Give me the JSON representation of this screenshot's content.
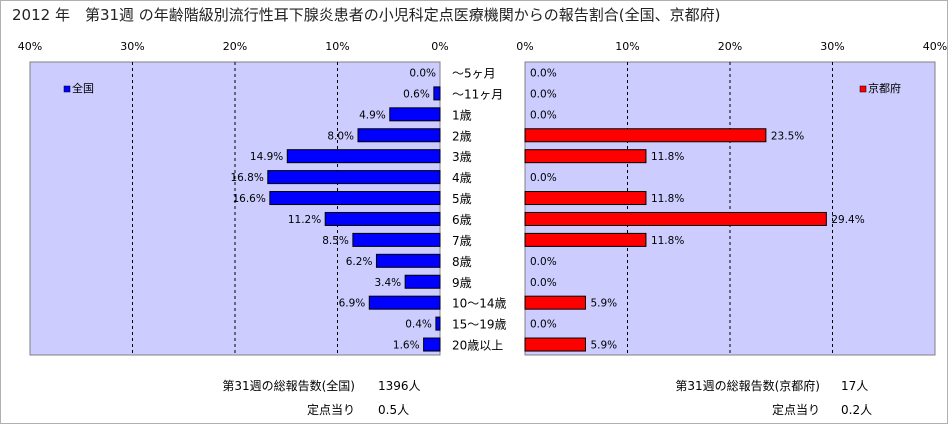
{
  "title": "2012 年　第31週 の年齢階級別流行性耳下腺炎患者の小児科定点医療機関からの報告割合(全国、京都府)",
  "chart_data": [
    {
      "type": "bar",
      "orientation": "horizontal",
      "direction": "right-to-left",
      "categories": [
        "～5ヶ月",
        "～11ヶ月",
        "1歳",
        "2歳",
        "3歳",
        "4歳",
        "5歳",
        "6歳",
        "7歳",
        "8歳",
        "9歳",
        "10～14歳",
        "15～19歳",
        "20歳以上"
      ],
      "series": [
        {
          "name": "全国",
          "color": "#0000ff",
          "values": [
            0.0,
            0.6,
            4.9,
            8.0,
            14.9,
            16.8,
            16.6,
            11.2,
            8.5,
            6.2,
            3.4,
            6.9,
            0.4,
            1.6
          ],
          "labels": [
            "0.0%",
            "0.6%",
            "4.9%",
            "8.0%",
            "14.9%",
            "16.8%",
            "16.6%",
            "11.2%",
            "8.5%",
            "6.2%",
            "3.4%",
            "6.9%",
            "0.4%",
            "1.6%"
          ]
        }
      ],
      "xlim": [
        0,
        40
      ],
      "ticks": [
        0,
        10,
        20,
        30,
        40
      ],
      "tick_labels": [
        "0%",
        "10%",
        "20%",
        "30%",
        "40%"
      ],
      "grid": true,
      "legend": "top-left",
      "plot_background": "#ccccff"
    },
    {
      "type": "bar",
      "orientation": "horizontal",
      "direction": "left-to-right",
      "categories": [
        "～5ヶ月",
        "～11ヶ月",
        "1歳",
        "2歳",
        "3歳",
        "4歳",
        "5歳",
        "6歳",
        "7歳",
        "8歳",
        "9歳",
        "10～14歳",
        "15～19歳",
        "20歳以上"
      ],
      "series": [
        {
          "name": "京都府",
          "color": "#ff0000",
          "values": [
            0.0,
            0.0,
            0.0,
            23.5,
            11.8,
            0.0,
            11.8,
            29.4,
            11.8,
            0.0,
            0.0,
            5.9,
            0.0,
            5.9
          ],
          "labels": [
            "0.0%",
            "0.0%",
            "0.0%",
            "23.5%",
            "11.8%",
            "0.0%",
            "11.8%",
            "29.4%",
            "11.8%",
            "0.0%",
            "0.0%",
            "5.9%",
            "0.0%",
            "5.9%"
          ]
        }
      ],
      "xlim": [
        0,
        40
      ],
      "ticks": [
        0,
        10,
        20,
        30,
        40
      ],
      "tick_labels": [
        "0%",
        "10%",
        "20%",
        "30%",
        "40%"
      ],
      "grid": true,
      "legend": "top-right",
      "plot_background": "#ccccff"
    }
  ],
  "footer": {
    "national": {
      "total_label": "第31週の総報告数(全国)",
      "total_value": "1396人",
      "per_label": "定点当り",
      "per_value": "0.5人"
    },
    "kyoto": {
      "total_label": "第31週の総報告数(京都府)",
      "total_value": "17人",
      "per_label": "定点当り",
      "per_value": "0.2人"
    }
  }
}
